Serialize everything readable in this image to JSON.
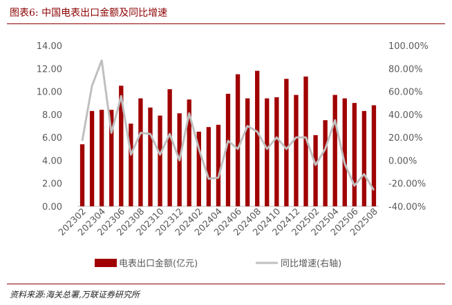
{
  "figure": {
    "title": "图表6:  中国电表出口金额及同比增速",
    "source": "资料来源:海关总署,万联证券研究所"
  },
  "colors": {
    "bar": "#a00000",
    "line": "#bfbfbf",
    "axis": "#bfbfbf",
    "title": "#8b0000"
  },
  "chart_data": {
    "type": "bar+line",
    "categories": [
      "202302",
      "202303",
      "202304",
      "202305",
      "202306",
      "202307",
      "202308",
      "202309",
      "202310",
      "202311",
      "202312",
      "202401",
      "202402",
      "202403",
      "202404",
      "202405",
      "202406",
      "202407",
      "202408",
      "202409",
      "202410",
      "202411",
      "202412",
      "202501",
      "202502",
      "202503",
      "202504",
      "202505",
      "202506",
      "202507",
      "202508"
    ],
    "x_tick_labels": [
      "202302",
      "202304",
      "202306",
      "202308",
      "202310",
      "202312",
      "202402",
      "202404",
      "202406",
      "202408",
      "202410",
      "202412",
      "202502",
      "202504",
      "202506",
      "202508"
    ],
    "series": [
      {
        "name": "电表出口金额(亿元)",
        "type": "bar",
        "axis": "left",
        "values": [
          5.4,
          8.3,
          8.4,
          8.4,
          10.5,
          7.2,
          9.4,
          8.6,
          7.9,
          10.2,
          8.1,
          9.3,
          6.5,
          6.9,
          7.1,
          9.8,
          11.5,
          9.4,
          11.8,
          9.4,
          9.5,
          11.1,
          9.7,
          11.3,
          6.2,
          7.5,
          9.7,
          9.4,
          9.0,
          8.3,
          8.8
        ]
      },
      {
        "name": "同比增速(右轴)",
        "type": "line",
        "axis": "right",
        "values": [
          17,
          65,
          87,
          24,
          56,
          5,
          24,
          23,
          5,
          23,
          0,
          41,
          10,
          -16,
          -15,
          17,
          10,
          30,
          25,
          10,
          20,
          10,
          20,
          20,
          -4,
          10,
          35,
          -3,
          -22,
          -12,
          -26
        ]
      }
    ],
    "left_axis": {
      "ylim": [
        0,
        14
      ],
      "ticks": [
        "0.00",
        "2.00",
        "4.00",
        "6.00",
        "8.00",
        "10.00",
        "12.00",
        "14.00"
      ]
    },
    "right_axis": {
      "ylim": [
        -40,
        100
      ],
      "ticks": [
        "-40.00%",
        "-20.00%",
        "0.00%",
        "20.00%",
        "40.00%",
        "60.00%",
        "80.00%",
        "100.00%"
      ]
    },
    "legend": {
      "placement": "bottom",
      "items": [
        "电表出口金额(亿元)",
        "同比增速(右轴)"
      ]
    },
    "grid": false
  }
}
